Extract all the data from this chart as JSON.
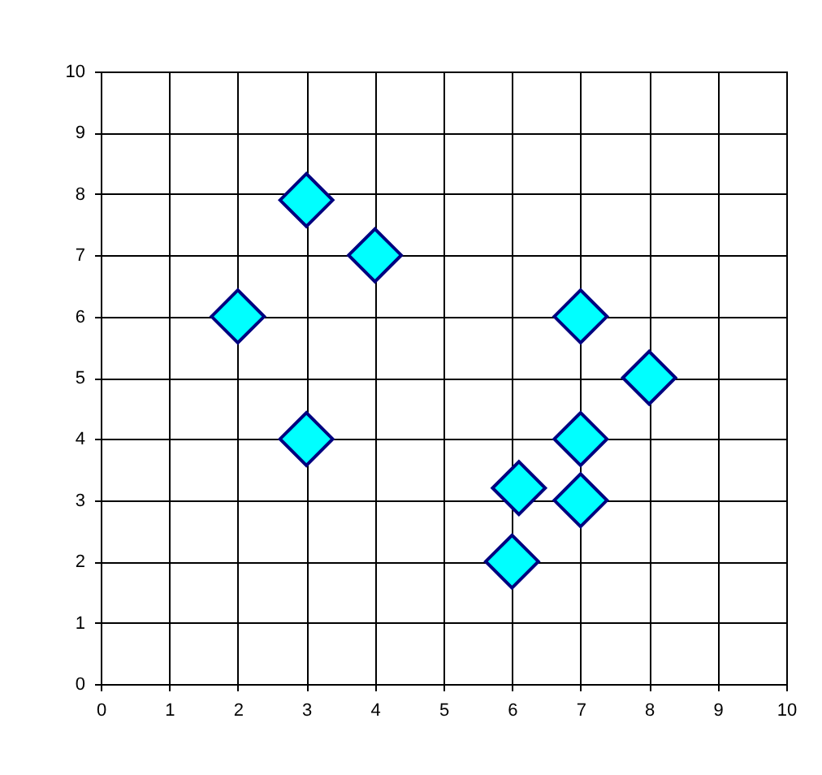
{
  "chart_data": {
    "type": "scatter",
    "x": [
      2,
      3,
      4,
      3,
      6,
      6.1,
      7,
      7,
      7,
      8
    ],
    "values": [
      6,
      7.9,
      7,
      4,
      2,
      3.2,
      3,
      4,
      6,
      5
    ],
    "color": "#00ffff",
    "marker": "diamond",
    "xlim": [
      0,
      10
    ],
    "ylim": [
      0,
      10
    ],
    "xticks": [
      0,
      1,
      2,
      3,
      4,
      5,
      6,
      7,
      8,
      9,
      10
    ],
    "yticks": [
      0,
      1,
      2,
      3,
      4,
      5,
      6,
      7,
      8,
      9,
      10
    ],
    "grid": true
  }
}
